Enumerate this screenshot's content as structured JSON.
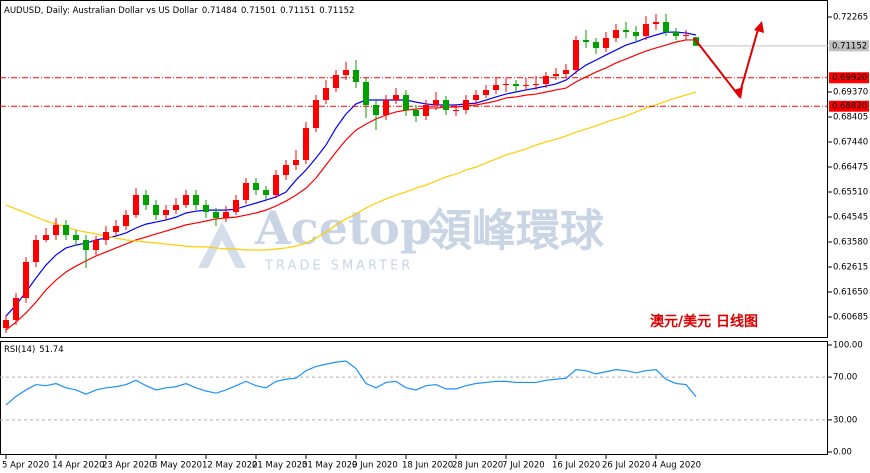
{
  "chart_data": [
    {
      "type": "candlestick",
      "title": "AUDUSD, Daily: Australian Dollar vs US Dollar",
      "categories": [
        "5 Apr 2020",
        null,
        null,
        null,
        null,
        "14 Apr 2020",
        null,
        null,
        null,
        null,
        "23 Apr 2020",
        null,
        null,
        null,
        null,
        "3 May 2020",
        null,
        null,
        null,
        null,
        "12 May 2020",
        null,
        null,
        null,
        null,
        "21 May 2020",
        null,
        null,
        null,
        null,
        "31 May 2020",
        null,
        null,
        null,
        null,
        "9 Jun 2020",
        null,
        null,
        null,
        null,
        "18 Jun 2020",
        null,
        null,
        null,
        null,
        "28 Jun 2020",
        null,
        null,
        null,
        null,
        "7 Jul 2020",
        null,
        null,
        null,
        null,
        "16 Jul 2020",
        null,
        null,
        null,
        null,
        "26 Jul 2020",
        null,
        null,
        null,
        null,
        "4 Aug 2020",
        null,
        null,
        null,
        null
      ],
      "open": [
        0.6026,
        0.60569,
        0.61418,
        0.62808,
        0.63657,
        0.6385,
        0.64236,
        0.6385,
        0.63657,
        0.63271,
        0.63657,
        0.63966,
        0.64197,
        0.64622,
        0.65394,
        0.65008,
        0.64622,
        0.64815,
        0.65008,
        0.65394,
        0.65008,
        0.64738,
        0.64506,
        0.64738,
        0.65201,
        0.65857,
        0.65587,
        0.65394,
        0.66166,
        0.66552,
        0.66745,
        0.6798,
        0.69061,
        0.69524,
        0.70026,
        0.70219,
        0.69756,
        0.68868,
        0.68482,
        0.69061,
        0.69254,
        0.68675,
        0.68443,
        0.68868,
        0.69061,
        0.68675,
        0.68675,
        0.69061,
        0.69254,
        0.69447,
        0.6964,
        0.69679,
        0.69601,
        0.6964,
        0.69679,
        0.69987,
        0.70065,
        0.70219,
        0.71377,
        0.713,
        0.71068,
        0.71454,
        0.71763,
        0.71686,
        0.71531,
        0.71995,
        0.72072,
        0.71686,
        0.71531,
        0.71484
      ],
      "high": [
        0.60762,
        0.61611,
        0.63001,
        0.6385,
        0.6412,
        0.64506,
        0.64429,
        0.64043,
        0.6385,
        0.63811,
        0.64197,
        0.64429,
        0.64815,
        0.65664,
        0.65587,
        0.65201,
        0.65008,
        0.65278,
        0.65587,
        0.65587,
        0.65201,
        0.64892,
        0.64969,
        0.65394,
        0.6605,
        0.6605,
        0.65741,
        0.66359,
        0.66745,
        0.67131,
        0.68212,
        0.69254,
        0.69833,
        0.70219,
        0.70528,
        0.70605,
        0.6991,
        0.69061,
        0.69254,
        0.69524,
        0.69447,
        0.68868,
        0.69061,
        0.6937,
        0.69215,
        0.68907,
        0.69254,
        0.69447,
        0.6964,
        0.6991,
        0.6991,
        0.69833,
        0.6991,
        0.69987,
        0.70142,
        0.70296,
        0.70451,
        0.71531,
        0.71763,
        0.71454,
        0.71686,
        0.71995,
        0.72072,
        0.71917,
        0.72303,
        0.72381,
        0.72381,
        0.7184,
        0.71763,
        0.71501
      ],
      "low": [
        0.60067,
        0.60376,
        0.61225,
        0.62615,
        0.6358,
        0.63657,
        0.63657,
        0.63425,
        0.62576,
        0.63078,
        0.63464,
        0.63811,
        0.64043,
        0.64506,
        0.64815,
        0.64429,
        0.64429,
        0.64661,
        0.64892,
        0.64815,
        0.64506,
        0.64197,
        0.64352,
        0.64622,
        0.65047,
        0.65394,
        0.65201,
        0.65278,
        0.65973,
        0.66359,
        0.66591,
        0.67826,
        0.68907,
        0.6937,
        0.69833,
        0.69524,
        0.68366,
        0.67903,
        0.68289,
        0.68907,
        0.68443,
        0.68212,
        0.68289,
        0.68675,
        0.68482,
        0.68443,
        0.68521,
        0.68907,
        0.69138,
        0.69293,
        0.6937,
        0.6937,
        0.69447,
        0.69447,
        0.69524,
        0.69833,
        0.6991,
        0.70065,
        0.71068,
        0.70837,
        0.70914,
        0.713,
        0.71454,
        0.713,
        0.71377,
        0.71763,
        0.71531,
        0.71377,
        0.71377,
        0.71151
      ],
      "close": [
        0.60569,
        0.61418,
        0.62808,
        0.63657,
        0.6385,
        0.64236,
        0.6385,
        0.63657,
        0.63271,
        0.63657,
        0.63966,
        0.64197,
        0.64622,
        0.65394,
        0.65008,
        0.64622,
        0.64815,
        0.65008,
        0.65394,
        0.65008,
        0.64738,
        0.64506,
        0.64738,
        0.65201,
        0.65857,
        0.65587,
        0.65394,
        0.66166,
        0.66552,
        0.66745,
        0.6798,
        0.69061,
        0.69524,
        0.70026,
        0.70219,
        0.69756,
        0.68868,
        0.68482,
        0.69061,
        0.69254,
        0.68675,
        0.68443,
        0.68868,
        0.69061,
        0.68675,
        0.68675,
        0.69061,
        0.69254,
        0.69447,
        0.6964,
        0.69679,
        0.69601,
        0.6964,
        0.69679,
        0.69987,
        0.70065,
        0.70219,
        0.71377,
        0.713,
        0.71068,
        0.71454,
        0.71763,
        0.71686,
        0.71531,
        0.71995,
        0.72072,
        0.71686,
        0.71531,
        0.7157,
        0.71152
      ],
      "up_color": "#ff0000",
      "down_color": "#00a000",
      "series": [
        {
          "color": "#0000ff",
          "values": [
            0.6072,
            0.6115,
            0.6165,
            0.6219,
            0.6269,
            0.6308,
            0.6335,
            0.6346,
            0.6354,
            0.6366,
            0.6373,
            0.6381,
            0.6393,
            0.6412,
            0.6427,
            0.6435,
            0.6443,
            0.6454,
            0.647,
            0.6477,
            0.6481,
            0.6481,
            0.6481,
            0.6485,
            0.6497,
            0.6508,
            0.652,
            0.6532,
            0.6551,
            0.6597,
            0.6636,
            0.6682,
            0.6732,
            0.6798,
            0.6852,
            0.6891,
            0.6906,
            0.6906,
            0.6906,
            0.6906,
            0.6906,
            0.6898,
            0.6891,
            0.6887,
            0.6887,
            0.6887,
            0.6891,
            0.6894,
            0.6906,
            0.6918,
            0.6929,
            0.6937,
            0.6945,
            0.6952,
            0.696,
            0.6968,
            0.6983,
            0.7014,
            0.7041,
            0.706,
            0.708,
            0.7099,
            0.7118,
            0.713,
            0.7145,
            0.7157,
            0.7168,
            0.7168,
            0.7165,
            0.7157
          ]
        },
        {
          "color": "#ff0000",
          "values": [
            0.6018,
            0.6049,
            0.6084,
            0.6126,
            0.6173,
            0.6211,
            0.6242,
            0.6265,
            0.6285,
            0.6304,
            0.6319,
            0.6335,
            0.635,
            0.6366,
            0.6377,
            0.6389,
            0.64,
            0.6412,
            0.6424,
            0.6431,
            0.6439,
            0.6447,
            0.6451,
            0.6454,
            0.6462,
            0.647,
            0.6481,
            0.6497,
            0.6516,
            0.6539,
            0.6566,
            0.6605,
            0.6655,
            0.6705,
            0.6752,
            0.679,
            0.6813,
            0.6833,
            0.6848,
            0.686,
            0.6867,
            0.6871,
            0.6875,
            0.6875,
            0.6879,
            0.6879,
            0.6883,
            0.6887,
            0.6894,
            0.6902,
            0.6914,
            0.6918,
            0.6925,
            0.6929,
            0.6937,
            0.6945,
            0.6952,
            0.6976,
            0.6995,
            0.7014,
            0.703,
            0.7049,
            0.7064,
            0.708,
            0.7095,
            0.7107,
            0.7118,
            0.713,
            0.7138,
            0.7138
          ]
        },
        {
          "color": "#ffcc00",
          "values": [
            0.6501,
            0.6485,
            0.647,
            0.6454,
            0.6439,
            0.6427,
            0.6416,
            0.6404,
            0.6396,
            0.6389,
            0.6381,
            0.6373,
            0.6366,
            0.6362,
            0.6358,
            0.6354,
            0.635,
            0.6346,
            0.6342,
            0.6339,
            0.6339,
            0.6335,
            0.6331,
            0.6331,
            0.6327,
            0.6327,
            0.6327,
            0.6331,
            0.6335,
            0.6342,
            0.6354,
            0.6373,
            0.6396,
            0.6424,
            0.6447,
            0.6466,
            0.6489,
            0.6508,
            0.6524,
            0.6539,
            0.6551,
            0.6566,
            0.6578,
            0.6593,
            0.6609,
            0.662,
            0.6636,
            0.6647,
            0.6663,
            0.6678,
            0.6694,
            0.6705,
            0.6717,
            0.6732,
            0.6744,
            0.6755,
            0.6767,
            0.6782,
            0.6794,
            0.6806,
            0.6821,
            0.6833,
            0.6844,
            0.686,
            0.6875,
            0.6887,
            0.6902,
            0.6914,
            0.6925,
            0.6937
          ]
        }
      ],
      "ylim": [
        0.59874,
        0.72921
      ],
      "yticks": [
        0.72265,
        {
          "value": 0.6937,
          "label": "0.69370"
        },
        0.68405,
        {
          "value": 0.6744,
          "label": "0.67440"
        },
        0.66475,
        {
          "value": 0.6551,
          "label": "0.65510"
        },
        0.64545,
        {
          "value": 0.6358,
          "label": "0.63580"
        },
        0.62615,
        {
          "value": 0.6165,
          "label": "0.61650"
        },
        0.60685
      ],
      "levels": [
        {
          "value": 0.6992,
          "label": "0.69920"
        },
        {
          "value": 0.6882,
          "label": "0.68820"
        }
      ],
      "level_color": "#ff0000",
      "annotation": "澳元/美元 日线图",
      "watermark": {
        "brand": "Acetop",
        "chinese": "領峰環球",
        "tagline": "TRADE SMARTER"
      }
    },
    {
      "type": "line",
      "title": "RSI(14)",
      "color": "#1e90ff",
      "values": [
        44,
        52,
        58,
        63,
        62,
        64,
        60,
        58,
        54,
        58,
        60,
        61,
        63,
        67,
        62,
        58,
        60,
        61,
        64,
        60,
        57,
        55,
        58,
        62,
        66,
        62,
        60,
        66,
        68,
        69,
        76,
        80,
        82,
        84,
        85,
        78,
        64,
        60,
        65,
        66,
        60,
        58,
        62,
        63,
        59,
        59,
        62,
        64,
        65,
        66,
        66,
        65,
        65,
        65,
        67,
        68,
        69,
        77,
        76,
        73,
        75,
        77,
        76,
        74,
        76,
        77,
        68,
        64,
        63,
        51.74
      ],
      "ylim": [
        0,
        100
      ],
      "yticks": [
        {
          "value": 100,
          "label": "100.00"
        },
        {
          "value": 70,
          "label": "70.00"
        },
        {
          "value": 30,
          "label": "30.00"
        },
        {
          "value": 0,
          "label": "0.00"
        }
      ]
    }
  ]
}
